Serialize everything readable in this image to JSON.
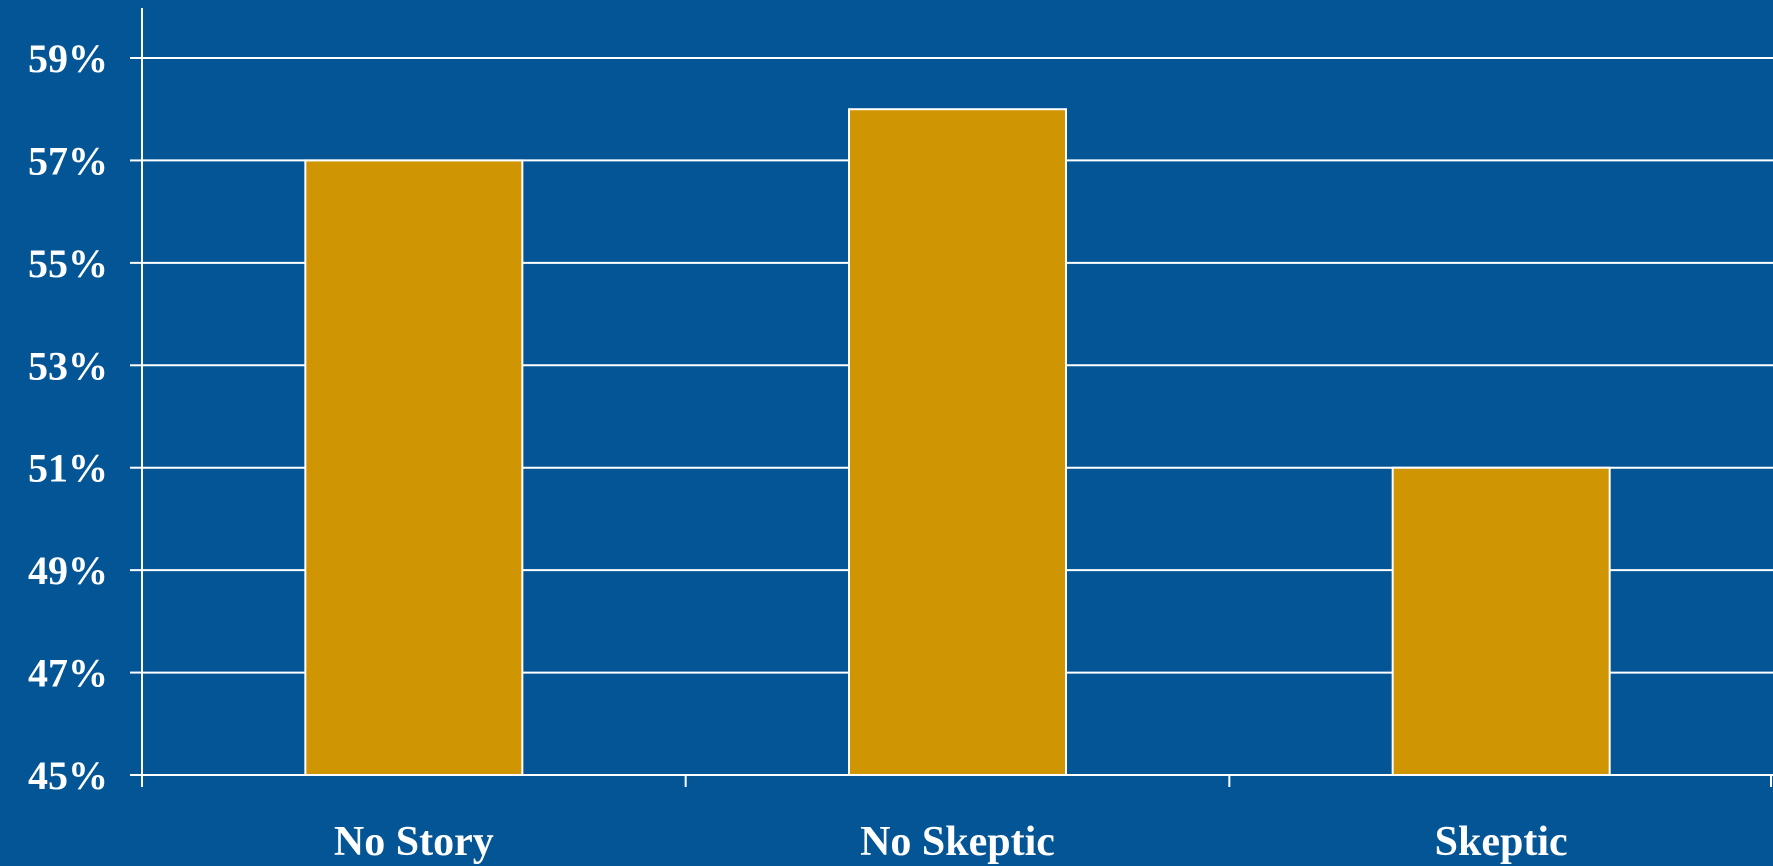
{
  "chart_data": {
    "type": "bar",
    "title": "",
    "xlabel": "",
    "ylabel": "",
    "categories": [
      "No Story",
      "No Skeptic",
      "Skeptic"
    ],
    "values": [
      57,
      58,
      51
    ],
    "ylim": [
      45,
      59
    ],
    "yticks": [
      45,
      47,
      49,
      51,
      53,
      55,
      57,
      59
    ],
    "ytick_labels": [
      "45%",
      "47%",
      "49%",
      "51%",
      "53%",
      "55%",
      "57%",
      "59%"
    ],
    "grid": true,
    "legend": "none",
    "colors": {
      "background": "#035596",
      "bar": "#D09503",
      "bar_edge": "#ffffff",
      "grid": "#ffffff",
      "text": "#ffffff"
    }
  }
}
